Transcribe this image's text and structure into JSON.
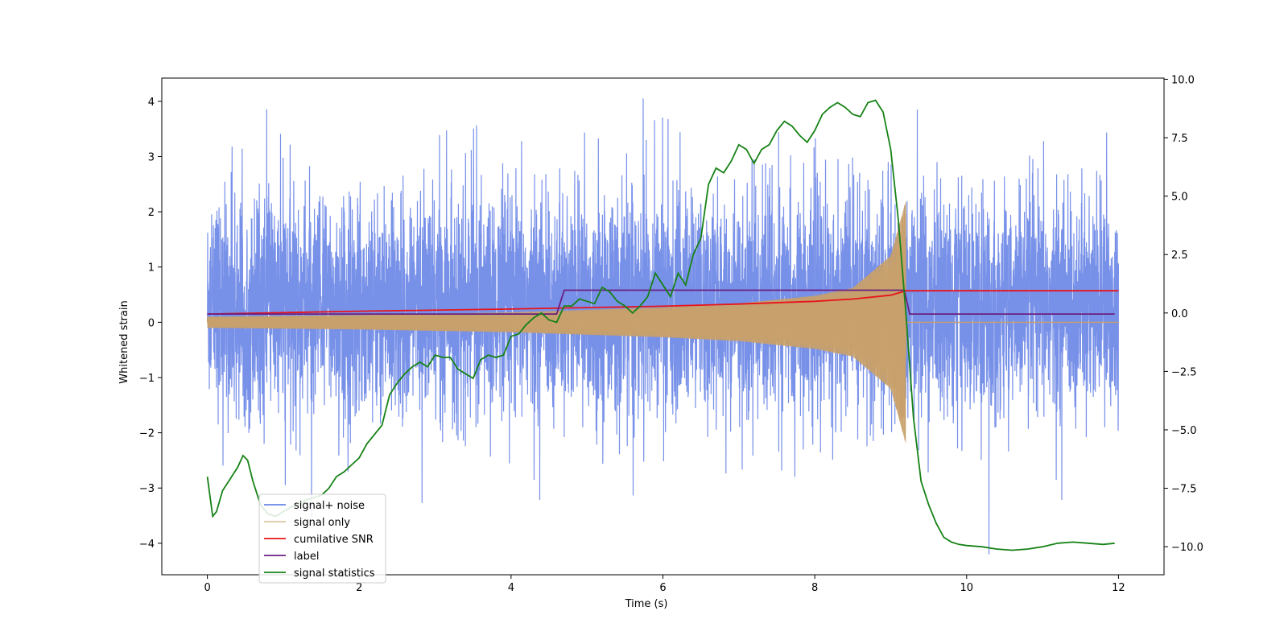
{
  "chart_data": {
    "type": "line",
    "title": "",
    "xlabel": "Time (s)",
    "ylabel": "Whitened strain",
    "y2label": "",
    "xlim": [
      -0.6,
      12.6
    ],
    "ylim": [
      -4.57,
      4.42
    ],
    "y2lim": [
      -11.2,
      10.05
    ],
    "xticks": [
      0,
      2,
      4,
      6,
      8,
      10,
      12
    ],
    "xtick_labels": [
      "0",
      "2",
      "4",
      "6",
      "8",
      "10",
      "12"
    ],
    "yticks": [
      -4,
      -3,
      -2,
      -1,
      0,
      1,
      2,
      3,
      4
    ],
    "ytick_labels": [
      "−4",
      "−3",
      "−2",
      "−1",
      "0",
      "1",
      "2",
      "3",
      "4"
    ],
    "y2ticks": [
      -10,
      -7.5,
      -5,
      -2.5,
      0,
      2.5,
      5,
      7.5,
      10
    ],
    "y2tick_labels": [
      "−10.0",
      "−7.5",
      "−5.0",
      "−2.5",
      "0.0",
      "2.5",
      "5.0",
      "7.5",
      "10.0"
    ],
    "grid": false,
    "legend_position": "lower-left",
    "colors": {
      "noise": "#6b87e6",
      "signal": "#c8a06a",
      "snr": "#e8141a",
      "label": "#6a1f80",
      "stat": "#168216"
    },
    "series": [
      {
        "name": "signal+ noise",
        "axis": "left",
        "description_range": "dense oscillation, roughly -3.5 to 3.5 around 0.3",
        "sample": {
          "t_start": 0,
          "t_end": 12,
          "merger_time": 9.2
        }
      },
      {
        "name": "signal only",
        "axis": "left",
        "envelope": {
          "t": [
            0,
            2,
            4,
            6,
            7,
            8,
            8.5,
            9,
            9.2
          ],
          "amp": [
            0.1,
            0.13,
            0.18,
            0.27,
            0.34,
            0.48,
            0.62,
            1.2,
            2.2
          ]
        }
      },
      {
        "name": "cumilative SNR",
        "axis": "left",
        "x": [
          0,
          2,
          4,
          6,
          7,
          8,
          8.5,
          9,
          9.2,
          12
        ],
        "y": [
          0.15,
          0.2,
          0.24,
          0.29,
          0.33,
          0.38,
          0.42,
          0.49,
          0.57,
          0.57
        ]
      },
      {
        "name": "label",
        "axis": "left",
        "x": [
          0,
          4.6,
          4.7,
          9.18,
          9.25,
          11.95
        ],
        "y": [
          0.15,
          0.15,
          0.58,
          0.58,
          0.15,
          0.15
        ]
      },
      {
        "name": "signal statistics",
        "axis": "right",
        "x": [
          0,
          0.07,
          0.12,
          0.2,
          0.3,
          0.4,
          0.47,
          0.53,
          0.6,
          0.7,
          0.8,
          0.9,
          1.0,
          1.1,
          1.2,
          1.3,
          1.4,
          1.5,
          1.6,
          1.7,
          1.8,
          1.9,
          2.0,
          2.1,
          2.2,
          2.3,
          2.4,
          2.5,
          2.6,
          2.7,
          2.8,
          2.9,
          3.0,
          3.1,
          3.2,
          3.3,
          3.4,
          3.5,
          3.6,
          3.7,
          3.8,
          3.9,
          4.0,
          4.1,
          4.2,
          4.3,
          4.4,
          4.5,
          4.6,
          4.7,
          4.8,
          4.9,
          5.0,
          5.1,
          5.2,
          5.3,
          5.4,
          5.5,
          5.6,
          5.7,
          5.8,
          5.9,
          6.0,
          6.1,
          6.2,
          6.3,
          6.4,
          6.5,
          6.6,
          6.7,
          6.8,
          6.9,
          7.0,
          7.1,
          7.2,
          7.3,
          7.4,
          7.5,
          7.6,
          7.7,
          7.8,
          7.9,
          8.0,
          8.1,
          8.2,
          8.3,
          8.4,
          8.5,
          8.6,
          8.7,
          8.8,
          8.9,
          9.0,
          9.1,
          9.2,
          9.3,
          9.4,
          9.5,
          9.6,
          9.7,
          9.8,
          9.9,
          10.0,
          10.2,
          10.4,
          10.6,
          10.8,
          11.0,
          11.2,
          11.4,
          11.6,
          11.8,
          11.95
        ],
        "y": [
          -7.0,
          -8.7,
          -8.5,
          -7.6,
          -7.1,
          -6.6,
          -6.1,
          -6.3,
          -7.2,
          -8.2,
          -8.6,
          -8.7,
          -8.5,
          -8.3,
          -8.2,
          -8.0,
          -7.9,
          -7.8,
          -7.5,
          -7.0,
          -6.8,
          -6.5,
          -6.2,
          -5.6,
          -5.2,
          -4.8,
          -3.5,
          -3.0,
          -2.6,
          -2.3,
          -2.1,
          -2.3,
          -1.8,
          -1.9,
          -1.9,
          -2.4,
          -2.6,
          -2.8,
          -2.0,
          -1.8,
          -1.9,
          -1.8,
          -1.0,
          -0.9,
          -0.5,
          -0.2,
          0.0,
          -0.3,
          -0.4,
          0.3,
          0.3,
          0.6,
          0.5,
          0.4,
          1.1,
          0.9,
          0.5,
          0.3,
          0.0,
          0.3,
          0.7,
          1.7,
          1.2,
          0.7,
          1.7,
          1.2,
          2.5,
          3.2,
          5.5,
          6.2,
          6.0,
          6.5,
          7.2,
          7.0,
          6.4,
          7.0,
          7.2,
          7.8,
          8.2,
          8.0,
          7.6,
          7.3,
          7.8,
          8.5,
          8.8,
          9.0,
          8.8,
          8.5,
          8.4,
          9.0,
          9.1,
          8.6,
          7.0,
          4.0,
          0.0,
          -4.5,
          -7.2,
          -8.2,
          -9.0,
          -9.6,
          -9.8,
          -9.9,
          -9.95,
          -10.0,
          -10.1,
          -10.15,
          -10.1,
          -10.0,
          -9.85,
          -9.8,
          -9.85,
          -9.9,
          -9.85
        ]
      }
    ]
  }
}
